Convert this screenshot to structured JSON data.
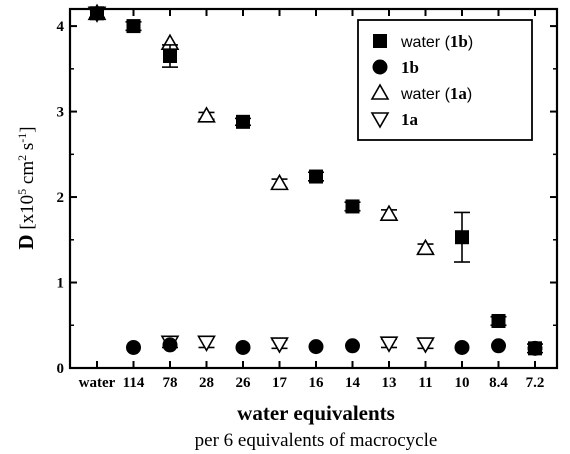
{
  "chart_data": {
    "type": "scatter",
    "xlabel": "water equivalents",
    "xlabel_sub": "per 6 equivalents of macrocycle",
    "ylabel": {
      "main": "D",
      "unit_prefix": "[x10",
      "exp1": "5",
      "unit_mid": " cm",
      "exp2": "2",
      "unit_s": " s",
      "exp3": "-1",
      "unit_end": "]"
    },
    "categories": [
      "water",
      "114",
      "78",
      "28",
      "26",
      "17",
      "16",
      "14",
      "13",
      "11",
      "10",
      "8.4",
      "7.2"
    ],
    "ylim": [
      0,
      4.2
    ],
    "yticks": [
      0,
      1,
      2,
      3,
      4
    ],
    "legend_position": "top-right",
    "series": [
      {
        "name": "water (1b)",
        "name_plain": "water (",
        "name_bold": "1b",
        "name_close": ")",
        "marker": "square",
        "values": [
          4.15,
          4.0,
          3.65,
          null,
          2.88,
          null,
          2.24,
          1.89,
          null,
          null,
          1.53,
          0.55,
          0.23
        ],
        "errors": [
          0.05,
          0.05,
          0.13,
          null,
          0.04,
          null,
          0.05,
          0.05,
          null,
          null,
          0.29,
          0.05,
          0.05
        ]
      },
      {
        "name": "1b",
        "name_bold": "1b",
        "marker": "circle",
        "values": [
          null,
          0.24,
          0.27,
          null,
          0.24,
          null,
          0.25,
          0.26,
          null,
          null,
          0.24,
          0.26,
          0.23
        ],
        "errors": [
          null,
          null,
          null,
          null,
          null,
          null,
          null,
          null,
          null,
          null,
          null,
          null,
          null
        ]
      },
      {
        "name": "water (1a)",
        "name_plain": "water (",
        "name_bold": "1a",
        "name_close": ")",
        "marker": "triangle-up",
        "values": [
          4.15,
          null,
          3.8,
          2.95,
          null,
          2.16,
          null,
          null,
          1.8,
          1.4,
          null,
          null,
          null
        ],
        "errors": [
          null,
          null,
          null,
          0.04,
          null,
          0.05,
          null,
          null,
          0.05,
          0.05,
          null,
          null,
          null
        ]
      },
      {
        "name": "1a",
        "name_bold": "1a",
        "marker": "triangle-down",
        "values": [
          4.15,
          null,
          0.3,
          0.3,
          null,
          0.28,
          null,
          null,
          0.29,
          0.28,
          null,
          null,
          null
        ],
        "errors": [
          null,
          null,
          0.06,
          0.06,
          null,
          0.05,
          null,
          null,
          0.05,
          0.05,
          null,
          null,
          null
        ]
      }
    ]
  }
}
